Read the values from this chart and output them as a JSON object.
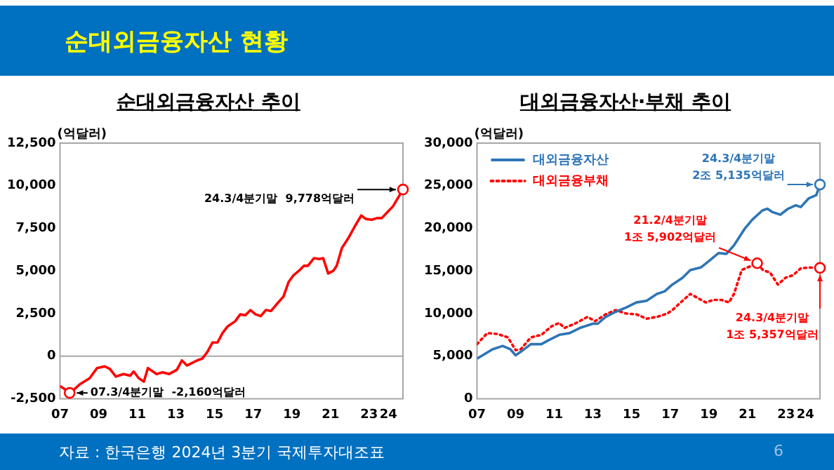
{
  "chart_data": [
    {
      "type": "line",
      "title": "순대외금융자산 추이",
      "ylabel": "(억달러)",
      "color": "#ff0000",
      "line_style": "solid",
      "marker": "none",
      "grid": false,
      "legend": false,
      "x": [
        2007.0,
        2007.53,
        2008.03,
        2008.53,
        2008.92,
        2009.31,
        2009.58,
        2009.89,
        2010.29,
        2010.63,
        2010.81,
        2011.08,
        2011.34,
        2011.55,
        2012.0,
        2012.31,
        2012.65,
        2013.05,
        2013.31,
        2013.57,
        2013.84,
        2014.1,
        2014.36,
        2014.63,
        2014.89,
        2015.15,
        2015.41,
        2015.68,
        2016.07,
        2016.33,
        2016.6,
        2016.86,
        2017.12,
        2017.39,
        2017.65,
        2017.92,
        2018.18,
        2018.57,
        2018.83,
        2019.09,
        2019.36,
        2019.62,
        2019.83,
        2020.15,
        2020.41,
        2020.62,
        2020.88,
        2021.14,
        2021.32,
        2021.59,
        2021.91,
        2022.25,
        2022.59,
        2022.83,
        2023.14,
        2023.41,
        2023.65,
        2023.91,
        2024.24,
        2024.75
      ],
      "values": [
        -1750,
        -2160,
        -1650,
        -1300,
        -700,
        -600,
        -750,
        -1200,
        -1050,
        -1150,
        -900,
        -1300,
        -1500,
        -700,
        -1050,
        -950,
        -1050,
        -800,
        -250,
        -550,
        -400,
        -250,
        -150,
        250,
        800,
        800,
        1350,
        1750,
        2050,
        2450,
        2400,
        2700,
        2450,
        2350,
        2700,
        2650,
        3000,
        3500,
        4350,
        4750,
        5000,
        5300,
        5300,
        5750,
        5700,
        5750,
        4850,
        5000,
        5300,
        6350,
        6900,
        7600,
        8250,
        8050,
        8000,
        8100,
        8100,
        8400,
        8800,
        9778
      ],
      "xlim": [
        2007,
        2024.75
      ],
      "ylim": [
        -2500,
        12500
      ],
      "xticks": [
        {
          "value": 2007,
          "label": "07"
        },
        {
          "value": 2009,
          "label": "09"
        },
        {
          "value": 2011,
          "label": "11"
        },
        {
          "value": 2013,
          "label": "13"
        },
        {
          "value": 2015,
          "label": "15"
        },
        {
          "value": 2017,
          "label": "17"
        },
        {
          "value": 2019,
          "label": "19"
        },
        {
          "value": 2021,
          "label": "21"
        },
        {
          "value": 2023,
          "label": "23"
        },
        {
          "value": 2024,
          "label": "24"
        }
      ],
      "yticks": [
        {
          "value": -2500,
          "label": "-2,500"
        },
        0,
        {
          "value": 2500,
          "label": "2,500"
        },
        {
          "value": 5000,
          "label": "5,000"
        },
        {
          "value": 7500,
          "label": "7,500"
        },
        {
          "value": 10000,
          "label": "10,000"
        },
        {
          "value": 12500,
          "label": "12,500"
        }
      ],
      "ref_lines": [
        {
          "axis": "y",
          "value": 0,
          "color": "#a6a6a6"
        }
      ],
      "annotations": [
        "순대외금융자산 현황",
        "자료 : 한국은행 2024년 3분기 국제투자대조표",
        "6",
        {
          "text": "07.3/4분기말  -2,160억달러",
          "x": 2007.5,
          "y": -2160
        },
        {
          "text": "24.3/4분기말  9,778억달러",
          "x": 2024.75,
          "y": 9778
        }
      ]
    },
    {
      "type": "line",
      "title": "대외금융자산·부채 추이",
      "ylabel": "(억달러)",
      "grid": false,
      "legend": "top left",
      "marker": "none",
      "series": [
        {
          "name": "대외금융자산",
          "color": "#2e75b6",
          "line_style": "solid",
          "x": [
            2007.0,
            2007.8,
            2008.33,
            2008.73,
            2009.0,
            2009.26,
            2009.79,
            2010.33,
            2010.73,
            2011.26,
            2011.79,
            2012.32,
            2012.99,
            2013.25,
            2013.65,
            2014.18,
            2014.72,
            2015.25,
            2015.78,
            2016.31,
            2016.71,
            2017.11,
            2017.64,
            2018.04,
            2018.58,
            2018.97,
            2019.51,
            2019.91,
            2020.3,
            2020.84,
            2021.24,
            2021.77,
            2022.03,
            2022.3,
            2022.7,
            2023.1,
            2023.5,
            2023.76,
            2024.16,
            2024.56,
            2024.75
          ],
          "values": [
            4700,
            5800,
            6200,
            5800,
            5100,
            5500,
            6400,
            6400,
            6900,
            7500,
            7700,
            8300,
            8800,
            8800,
            9600,
            10200,
            10700,
            11300,
            11500,
            12300,
            12600,
            13400,
            14200,
            15100,
            15400,
            16100,
            17100,
            17000,
            18000,
            19900,
            21000,
            22100,
            22300,
            21900,
            21600,
            22300,
            22700,
            22500,
            23500,
            23900,
            25135
          ]
        },
        {
          "name": "대외금융부채",
          "color": "#ff0000",
          "line_style": "dotted",
          "x": [
            2007.0,
            2007.53,
            2008.06,
            2008.6,
            2009.0,
            2009.26,
            2009.79,
            2010.33,
            2010.86,
            2011.26,
            2011.52,
            2012.06,
            2012.72,
            2013.12,
            2013.65,
            2014.18,
            2014.72,
            2015.25,
            2015.78,
            2016.31,
            2016.85,
            2017.11,
            2017.64,
            2018.04,
            2018.44,
            2018.84,
            2019.24,
            2019.64,
            2020.04,
            2020.3,
            2020.7,
            2021.5,
            2021.8,
            2022.17,
            2022.57,
            2022.97,
            2023.36,
            2023.76,
            2024.16,
            2024.75
          ],
          "values": [
            6400,
            7700,
            7600,
            7200,
            5700,
            5800,
            7200,
            7500,
            8500,
            8900,
            8300,
            8800,
            9600,
            9100,
            9900,
            10400,
            10000,
            9900,
            9400,
            9600,
            10000,
            10400,
            11500,
            12300,
            11800,
            11300,
            11600,
            11600,
            11300,
            12300,
            15100,
            15902,
            15100,
            14800,
            13400,
            14200,
            14500,
            15300,
            15400,
            15357
          ]
        }
      ],
      "xlim": [
        2007,
        2024.75
      ],
      "ylim": [
        0,
        30000
      ],
      "xticks": [
        {
          "value": 2007,
          "label": "07"
        },
        {
          "value": 2009,
          "label": "09"
        },
        {
          "value": 2011,
          "label": "11"
        },
        {
          "value": 2013,
          "label": "13"
        },
        {
          "value": 2015,
          "label": "15"
        },
        {
          "value": 2017,
          "label": "17"
        },
        {
          "value": 2019,
          "label": "19"
        },
        {
          "value": 2021,
          "label": "21"
        },
        {
          "value": 2023,
          "label": "23"
        },
        {
          "value": 2024,
          "label": "24"
        }
      ],
      "yticks": [
        0,
        {
          "value": 5000,
          "label": "5,000"
        },
        {
          "value": 10000,
          "label": "10,000"
        },
        {
          "value": 15000,
          "label": "15,000"
        },
        {
          "value": 20000,
          "label": "20,000"
        },
        {
          "value": 25000,
          "label": "25,000"
        },
        {
          "value": 30000,
          "label": "30,000"
        }
      ],
      "annotations": [
        {
          "text": "24.3/4분기말\n2조 5,135억달러",
          "x": 2024.75,
          "y": 25135
        },
        {
          "text": "21.2/4분기말\n1조 5,902억달러",
          "x": 2021.5,
          "y": 15902
        },
        {
          "text": "24.3/4분기말\n1조 5,357억달러",
          "x": 2024.75,
          "y": 15357
        }
      ]
    }
  ]
}
